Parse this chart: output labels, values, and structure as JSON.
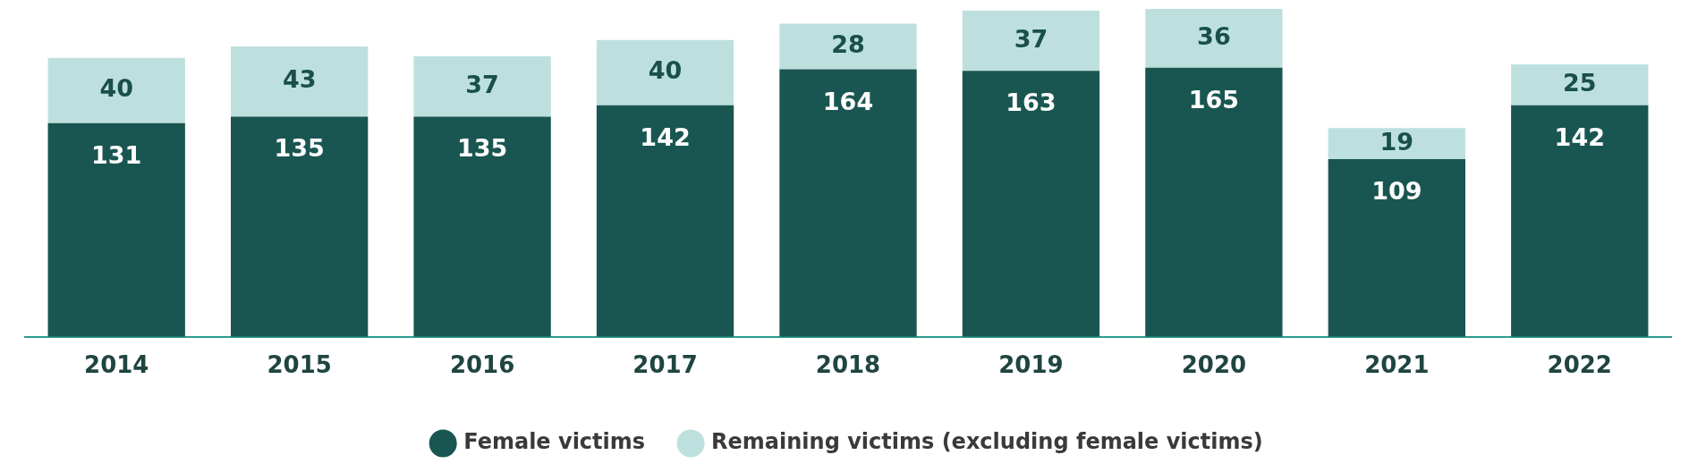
{
  "chart_data": {
    "type": "bar",
    "stacked": true,
    "categories": [
      "2014",
      "2015",
      "2016",
      "2017",
      "2018",
      "2019",
      "2020",
      "2021",
      "2022"
    ],
    "series": [
      {
        "name": "Female victims",
        "color": "#1a5651",
        "values": [
          131,
          135,
          135,
          142,
          164,
          163,
          165,
          109,
          142
        ]
      },
      {
        "name": "Remaining victims (excluding female victims)",
        "color": "#bde0de",
        "values": [
          40,
          43,
          37,
          40,
          28,
          37,
          36,
          19,
          25
        ]
      }
    ],
    "data_labels": true,
    "grid": false,
    "legend": "bottom",
    "tick_labels": "x"
  }
}
